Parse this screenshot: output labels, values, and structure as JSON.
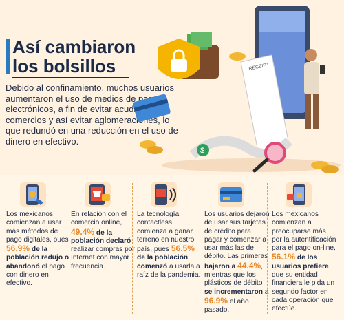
{
  "title": {
    "line1": "Así cambiaron",
    "line2": "los bolsillos"
  },
  "intro": "Debido al confinamiento, muchos usuarios aumentaron el uso de medios de pago electrónicos, a fin de evitar acudir a los comercios y así evitar aglomeraciones, lo que redundó en una reducción en el uso de dinero en efectivo.",
  "illustration": {
    "receipt_label": "RECEIPT"
  },
  "columns": [
    {
      "icon": "mobile-payment-icon",
      "parts": [
        {
          "t": "Los mexicanos comienzan a usar más métodos de pago digitales, pues ",
          "s": "n"
        },
        {
          "t": "56.9%",
          "s": "hl"
        },
        {
          "t": " de la población redujo o abandonó",
          "s": "b"
        },
        {
          "t": " el pago con dinero en efectivo.",
          "s": "n"
        }
      ]
    },
    {
      "icon": "online-shop-icon",
      "parts": [
        {
          "t": "En relación con el comercio online, ",
          "s": "n"
        },
        {
          "t": "49.4%",
          "s": "hl"
        },
        {
          "t": " de la población declaró",
          "s": "b"
        },
        {
          "t": " realizar compras por Internet con mayor frecuencia.",
          "s": "n"
        }
      ]
    },
    {
      "icon": "contactless-icon",
      "parts": [
        {
          "t": "La tecnología contactless comienza a ganar terreno en nuestro país, pues ",
          "s": "n"
        },
        {
          "t": "56.5%",
          "s": "hl"
        },
        {
          "t": " de la población comenzó",
          "s": "b"
        },
        {
          "t": " a usarla a raíz de la pandemia.",
          "s": "n"
        }
      ]
    },
    {
      "icon": "credit-card-icon",
      "parts": [
        {
          "t": "Los usuarios dejaron de usar sus tarjetas de crédito para pagar y comenzar a usar más las de débito. Las primeras ",
          "s": "n"
        },
        {
          "t": "bajaron a ",
          "s": "b"
        },
        {
          "t": "44.4%",
          "s": "hl"
        },
        {
          "t": ", mientras que los plásticos de débito ",
          "s": "n"
        },
        {
          "t": "se incrementaron",
          "s": "b"
        },
        {
          "t": " a ",
          "s": "n"
        },
        {
          "t": "96.9%",
          "s": "hl"
        },
        {
          "t": " el año pasado.",
          "s": "n"
        }
      ]
    },
    {
      "icon": "phone-security-icon",
      "parts": [
        {
          "t": "Los mexicanos comienzan a preocuparse más por la autentificación para el pago on-line, ",
          "s": "n"
        },
        {
          "t": "56.1%",
          "s": "hl"
        },
        {
          "t": " de los usuarios prefiere",
          "s": "b"
        },
        {
          "t": " que su entidad financiera le pida un segundo factor en cada operación que efectúe.",
          "s": "n"
        }
      ]
    }
  ],
  "colors": {
    "accent": "#e8882a",
    "navy": "#1b2a47",
    "blue": "#2a7bbd",
    "background": "#fff2e0"
  }
}
